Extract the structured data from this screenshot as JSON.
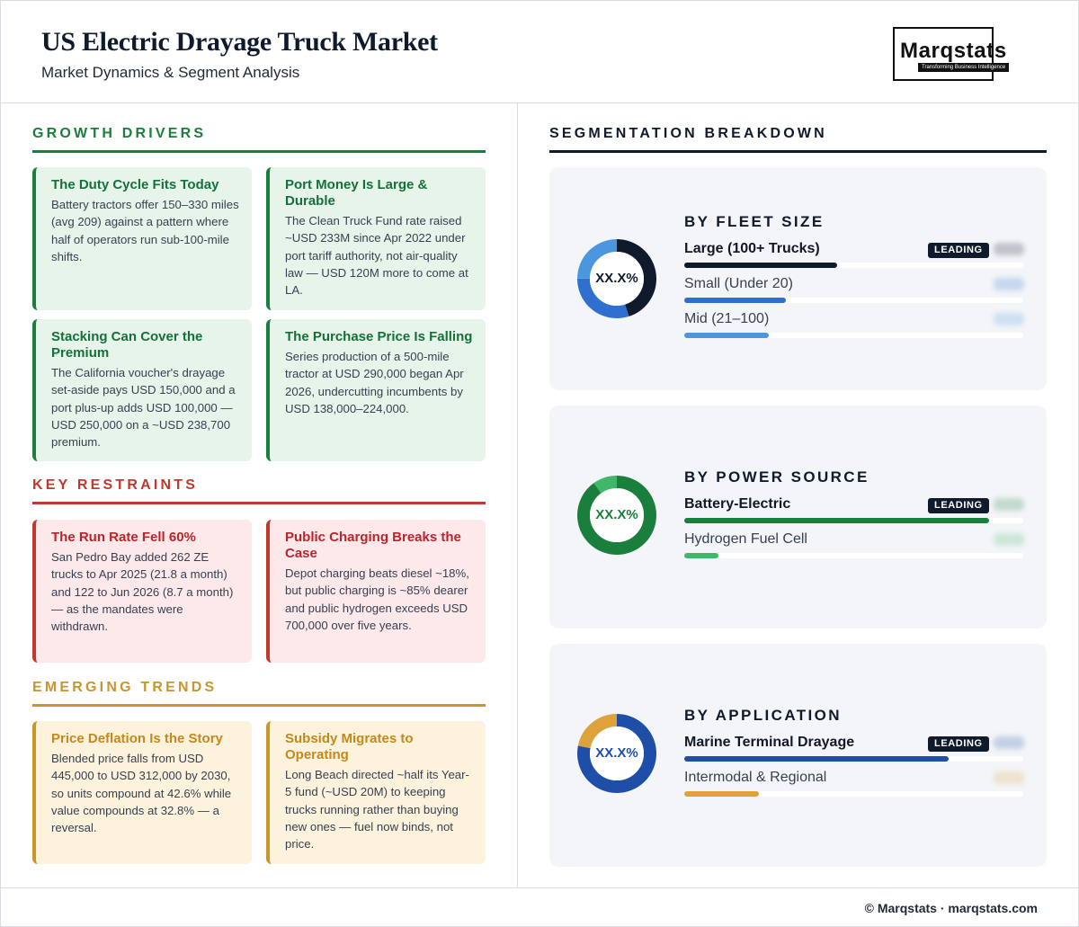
{
  "header": {
    "title": "US Electric Drayage Truck Market",
    "subtitle": "Market Dynamics & Segment Analysis"
  },
  "logo": {
    "wordmark": "Marqstats",
    "tagline": "Transforming Business Intelligence"
  },
  "drivers": {
    "heading": "GROWTH DRIVERS",
    "color": "#1a7f3c",
    "cards": [
      {
        "title": "The Duty Cycle Fits Today",
        "body": "Battery tractors offer 150–330 miles (avg 209) against a pattern where half of operators run sub-100-mile shifts."
      },
      {
        "title": "Port Money Is Large & Durable",
        "body": "The Clean Truck Fund rate raised ~USD 233M since Apr 2022 under port tariff authority, not air-quality law — USD 120M more to come at LA."
      },
      {
        "title": "Stacking Can Cover the Premium",
        "body": "The California voucher's drayage set-aside pays USD 150,000 and a port plus-up adds USD 100,000 — USD 250,000 on a ~USD 238,700 premium."
      },
      {
        "title": "The Purchase Price Is Falling",
        "body": "Series production of a 500-mile tractor at USD 290,000 began Apr 2026, undercutting incumbents by USD 138,000–224,000."
      }
    ]
  },
  "restraints": {
    "heading": "KEY RESTRAINTS",
    "color": "#c0392b",
    "cards": [
      {
        "title": "The Run Rate Fell 60%",
        "body": "San Pedro Bay added 262 ZE trucks to Apr 2025 (21.8 a month) and 122 to Jun 2026 (8.7 a month) — as the mandates were withdrawn."
      },
      {
        "title": "Public Charging Breaks the Case",
        "body": "Depot charging beats diesel ~18%, but public charging is ~85% dearer and public hydrogen exceeds USD 700,000 over five years."
      }
    ]
  },
  "trends": {
    "heading": "EMERGING TRENDS",
    "color": "#c9962b",
    "cards": [
      {
        "title": "Price Deflation Is the Story",
        "body": "Blended price falls from USD 445,000 to USD 312,000 by 2030, so units compound at 42.6% while value compounds at 32.8% — a reversal."
      },
      {
        "title": "Subsidy Migrates to Operating",
        "body": "Long Beach directed ~half its Year-5 fund (~USD 20M) to keeping trucks running rather than buying new ones — fuel now binds, not price."
      }
    ]
  },
  "segmentation": {
    "heading": "SEGMENTATION BREAKDOWN",
    "leading_badge": "LEADING",
    "panels": [
      {
        "title": "BY FLEET SIZE",
        "center_label": "XX.X%",
        "center_color": "#0f1b2d",
        "rows": [
          {
            "label": "Large (100+ Trucks)",
            "leading": true,
            "share": 0.45,
            "color": "#0f1b2d"
          },
          {
            "label": "Small (Under 20)",
            "leading": false,
            "share": 0.3,
            "color": "#2f6fd0"
          },
          {
            "label": "Mid (21–100)",
            "leading": false,
            "share": 0.25,
            "color": "#4a97e0"
          }
        ]
      },
      {
        "title": "BY POWER SOURCE",
        "center_label": "XX.X%",
        "center_color": "#1a7f3c",
        "rows": [
          {
            "label": "Battery-Electric",
            "leading": true,
            "share": 0.9,
            "color": "#1a7f3c"
          },
          {
            "label": "Hydrogen Fuel Cell",
            "leading": false,
            "share": 0.1,
            "color": "#3fb86a"
          }
        ]
      },
      {
        "title": "BY APPLICATION",
        "center_label": "XX.X%",
        "center_color": "#1f4ea8",
        "rows": [
          {
            "label": "Marine Terminal Drayage",
            "leading": true,
            "share": 0.78,
            "color": "#1f4ea8"
          },
          {
            "label": "Intermodal & Regional",
            "leading": false,
            "share": 0.22,
            "color": "#dda23a"
          }
        ]
      }
    ]
  },
  "footer": {
    "text": "© Marqstats · marqstats.com"
  }
}
